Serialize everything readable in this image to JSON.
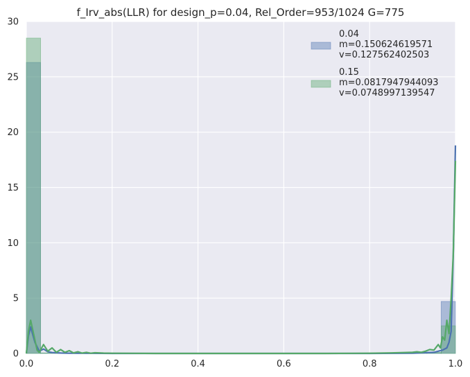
{
  "chart_data": {
    "type": "bar",
    "title": "f_Irv_abs(LLR) for design_p=0.04, Rel_Order=953/1024 G=775",
    "xlabel": "",
    "ylabel": "",
    "xlim": [
      0.0,
      1.0
    ],
    "ylim": [
      0,
      30
    ],
    "xticks": [
      "0.0",
      "0.2",
      "0.4",
      "0.6",
      "0.8",
      "1.0"
    ],
    "yticks": [
      "0",
      "5",
      "10",
      "15",
      "20",
      "25",
      "30"
    ],
    "grid": true,
    "legend_position": "top-right",
    "bin_edges": [
      0.0,
      0.0333,
      0.0667,
      0.1,
      0.1333,
      0.1667,
      0.2,
      0.2333,
      0.2667,
      0.3,
      0.3333,
      0.3667,
      0.4,
      0.4333,
      0.4667,
      0.5,
      0.5333,
      0.5667,
      0.6,
      0.6333,
      0.6667,
      0.7,
      0.7333,
      0.7667,
      0.8,
      0.8333,
      0.8667,
      0.9,
      0.9333,
      0.9667,
      1.0
    ],
    "series": [
      {
        "name": "0.04",
        "legend_lines": [
          "0.04",
          " m=0.150624619571",
          " v=0.127562402503"
        ],
        "color": "#4c72b0",
        "hist_values": [
          26.3,
          0.03,
          0.02,
          0.01,
          0,
          0,
          0,
          0,
          0,
          0,
          0,
          0,
          0,
          0,
          0,
          0,
          0,
          0,
          0,
          0,
          0,
          0,
          0,
          0,
          0,
          0,
          0,
          0.01,
          0.05,
          4.7
        ],
        "kde_x": [
          0.0,
          0.005,
          0.01,
          0.02,
          0.03,
          0.04,
          0.05,
          0.06,
          0.08,
          0.1,
          0.15,
          0.2,
          0.5,
          0.8,
          0.9,
          0.95,
          0.97,
          0.98,
          0.985,
          0.99,
          0.995,
          1.0
        ],
        "kde_y": [
          0.0,
          1.6,
          2.4,
          1.0,
          0.2,
          0.4,
          0.15,
          0.08,
          0.04,
          0.02,
          0.01,
          0.0,
          0.0,
          0.0,
          0.02,
          0.1,
          0.3,
          0.5,
          1.0,
          2.0,
          9.0,
          18.8
        ]
      },
      {
        "name": "0.15",
        "legend_lines": [
          "0.15",
          " m=0.0817947944093",
          " v=0.0748997139547"
        ],
        "color": "#55a868",
        "hist_values": [
          28.5,
          0.05,
          0.03,
          0.02,
          0.01,
          0,
          0,
          0,
          0,
          0,
          0,
          0,
          0,
          0,
          0,
          0,
          0,
          0,
          0,
          0,
          0,
          0,
          0,
          0,
          0,
          0,
          0.01,
          0.02,
          0.1,
          2.5
        ],
        "kde_x": [
          0.0,
          0.005,
          0.01,
          0.02,
          0.025,
          0.03,
          0.04,
          0.05,
          0.06,
          0.07,
          0.08,
          0.09,
          0.1,
          0.11,
          0.12,
          0.13,
          0.14,
          0.15,
          0.16,
          0.18,
          0.2,
          0.25,
          0.3,
          0.5,
          0.7,
          0.8,
          0.85,
          0.88,
          0.9,
          0.91,
          0.92,
          0.93,
          0.94,
          0.95,
          0.96,
          0.965,
          0.97,
          0.975,
          0.98,
          0.985,
          0.99,
          0.995,
          1.0
        ],
        "kde_y": [
          0.0,
          2.0,
          3.0,
          1.2,
          0.3,
          0.1,
          0.8,
          0.2,
          0.5,
          0.1,
          0.35,
          0.1,
          0.25,
          0.05,
          0.15,
          0.03,
          0.1,
          0.02,
          0.06,
          0.03,
          0.02,
          0.01,
          0.0,
          0.0,
          0.0,
          0.02,
          0.05,
          0.08,
          0.1,
          0.15,
          0.1,
          0.2,
          0.35,
          0.3,
          0.8,
          0.5,
          1.5,
          1.2,
          3.0,
          1.8,
          5.0,
          9.0,
          17.4
        ]
      }
    ]
  }
}
